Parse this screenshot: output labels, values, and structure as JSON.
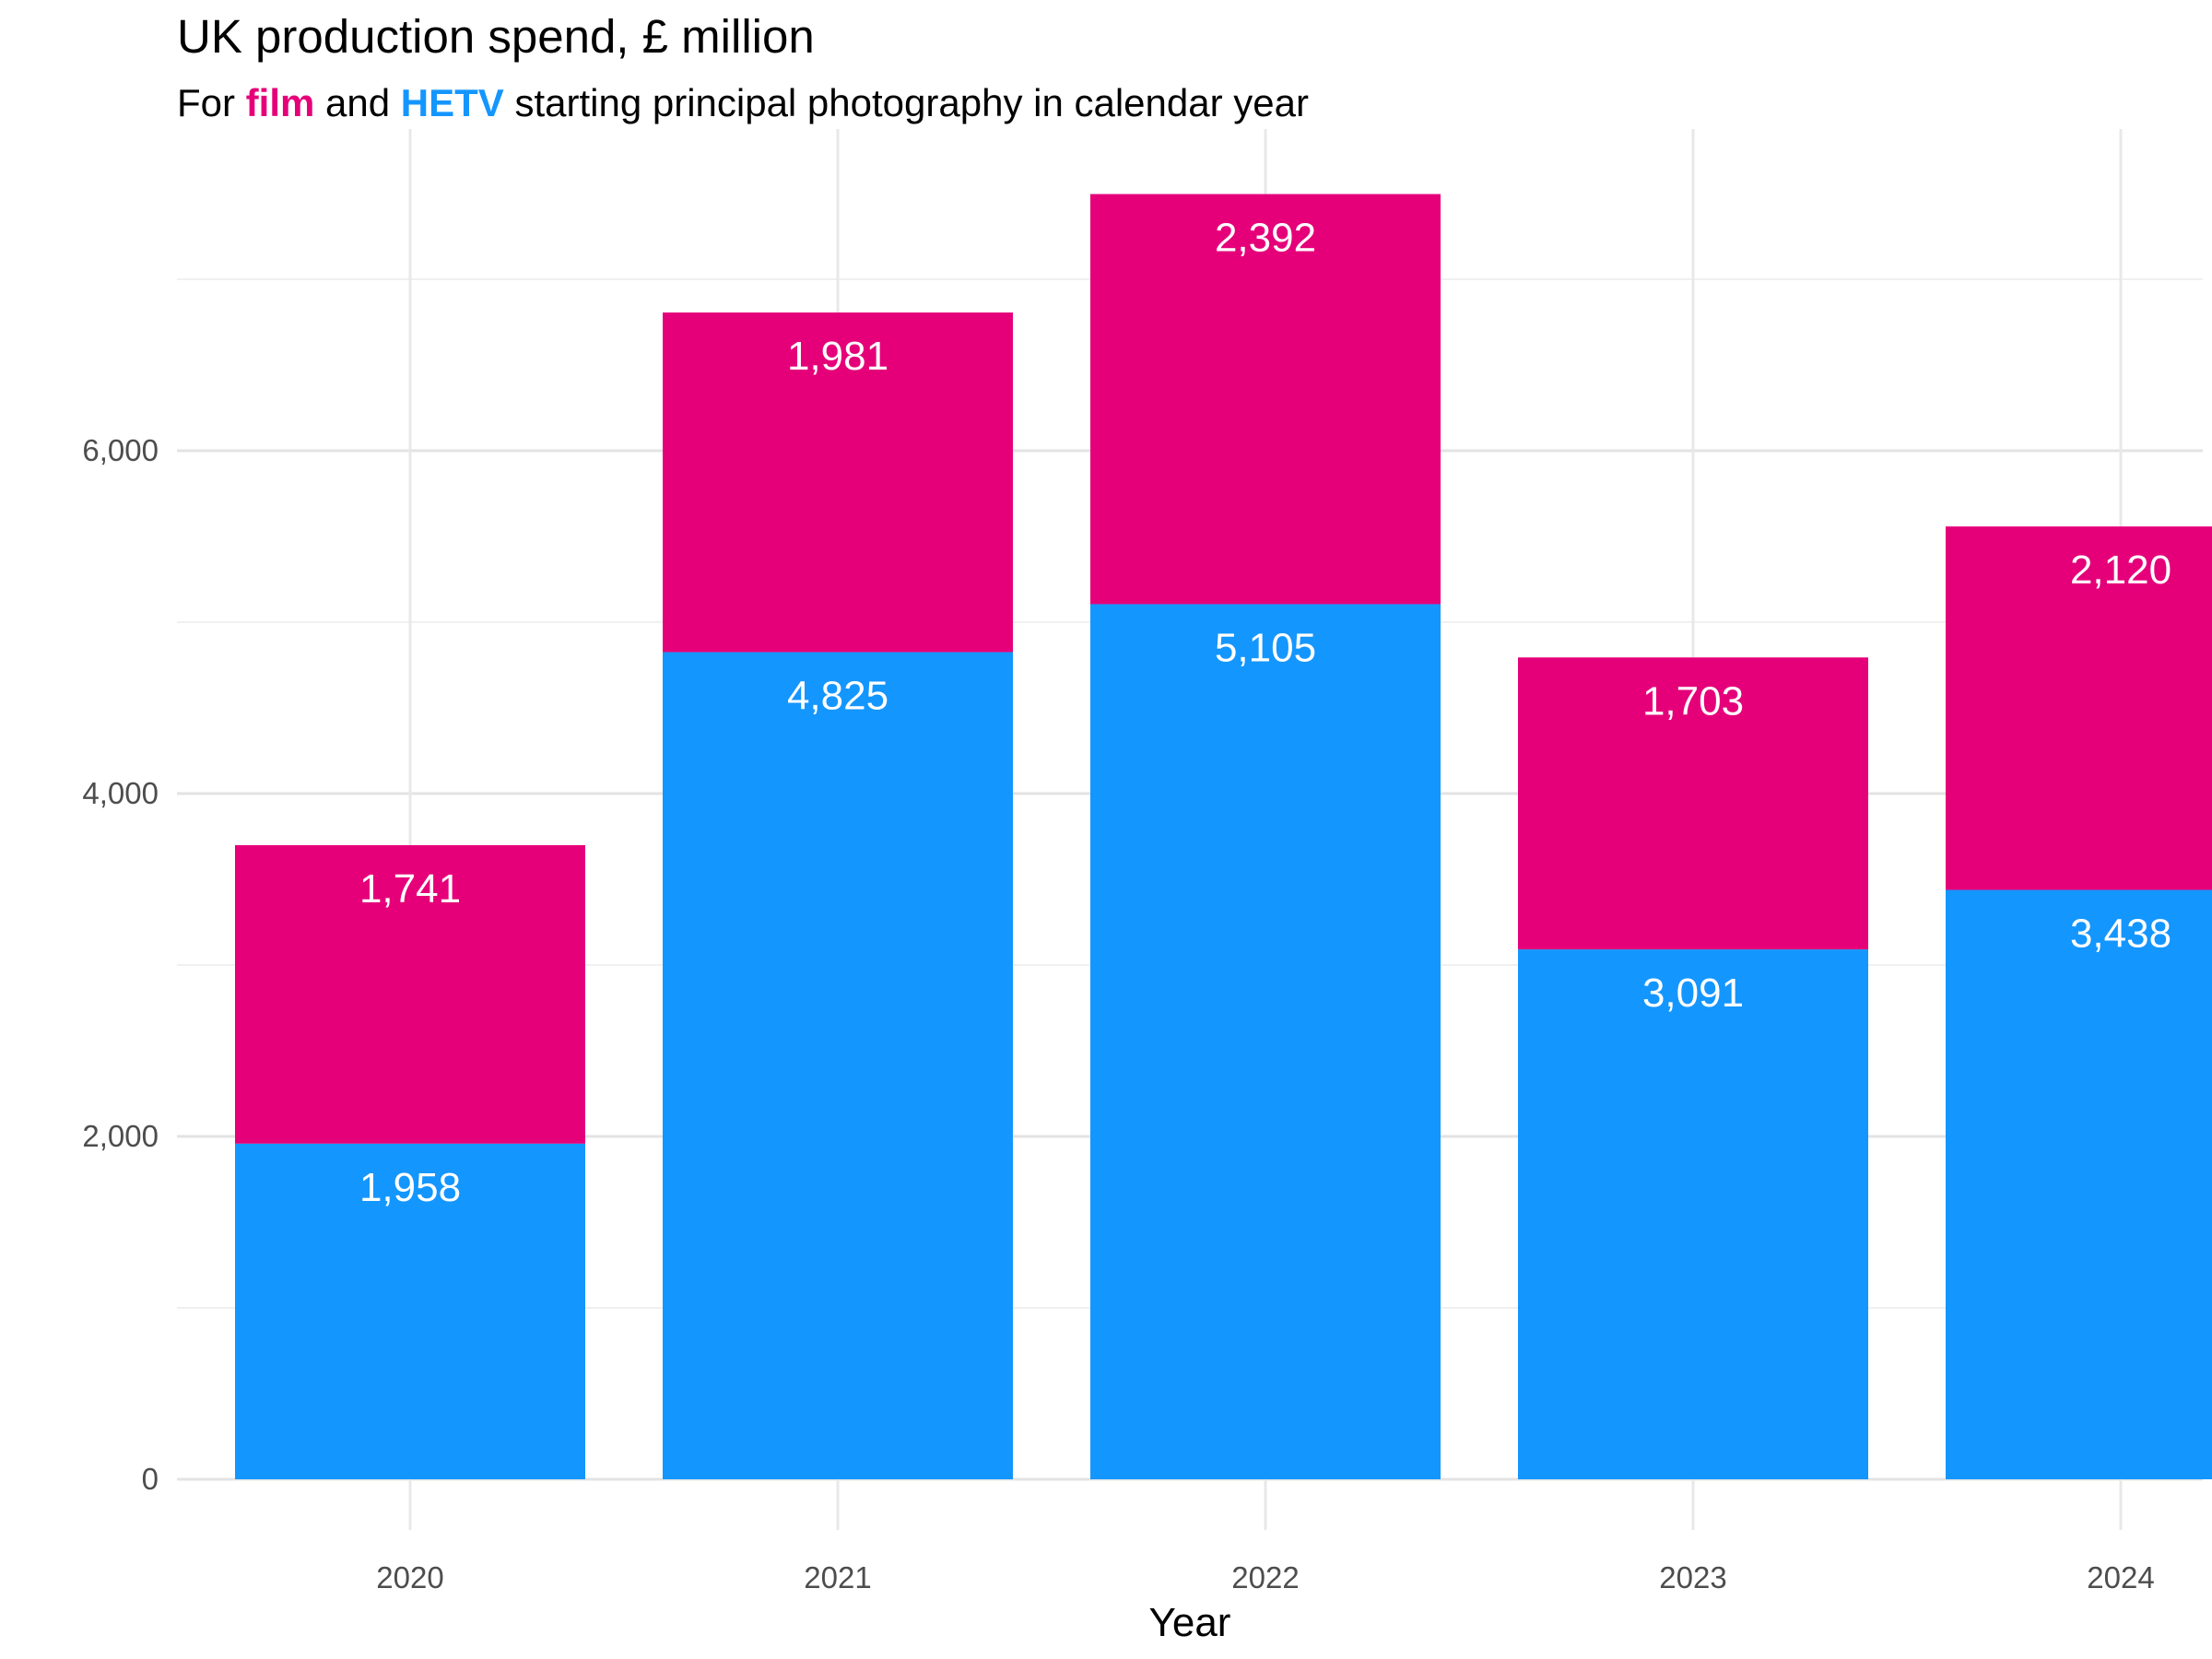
{
  "chart_data": {
    "type": "bar",
    "stacked": true,
    "title": "UK production spend, £ million",
    "subtitle": {
      "prefix": "For ",
      "film_word": "film",
      "middle": " and ",
      "hetv_word": "HETV",
      "suffix": " starting principal photography in calendar year"
    },
    "xlabel": "Year",
    "ylabel": "",
    "categories": [
      "2020",
      "2021",
      "2022",
      "2023",
      "2024"
    ],
    "series": [
      {
        "key": "hetv",
        "values": [
          1958,
          4825,
          5105,
          3091,
          3438
        ],
        "labels": [
          "1,958",
          "4,825",
          "5,105",
          "3,091",
          "3,438"
        ],
        "color": "#1496FF"
      },
      {
        "key": "film",
        "values": [
          1741,
          1981,
          2392,
          1703,
          2120
        ],
        "labels": [
          "1,741",
          "1,981",
          "2,392",
          "1,703",
          "2,120"
        ],
        "color": "#E5007A"
      }
    ],
    "ylim": [
      0,
      7800
    ],
    "yticks": [
      0,
      2000,
      4000,
      6000
    ],
    "ytick_labels": [
      "0",
      "2,000",
      "4,000",
      "6,000"
    ],
    "grid": true,
    "legend": "none"
  }
}
